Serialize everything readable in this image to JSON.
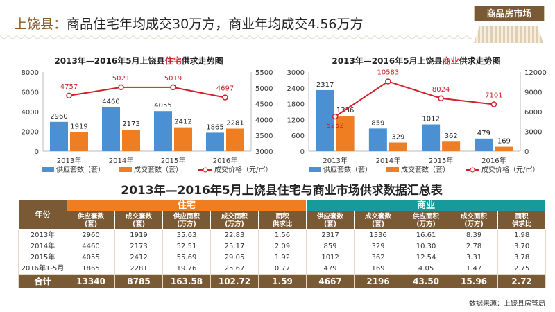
{
  "headline": {
    "prefix": "上饶县：",
    "text": "商品住宅年均成交30万方，商业年均成交4.56万方"
  },
  "badge": "商品房市场",
  "colors": {
    "supply": "#4a90d2",
    "deal": "#ef7d22",
    "price": "#d0202a",
    "brown": "#7a5a34",
    "teal": "#179a9a"
  },
  "chart_data": [
    {
      "type": "bar+line",
      "title_pre": "2013年—2016年5月上饶县",
      "title_hl": "住宅",
      "title_post": "供求走势图",
      "categories": [
        "2013年",
        "2014年",
        "2015年",
        "2016年"
      ],
      "y_left": {
        "min": 0,
        "max": 8000,
        "ticks": [
          "0",
          "2000",
          "4000",
          "6000",
          "8000"
        ]
      },
      "y_right": {
        "min": 3000,
        "max": 5500,
        "ticks": [
          "3000",
          "3500",
          "4000",
          "4500",
          "5000",
          "5500"
        ]
      },
      "series": [
        {
          "name": "供应套数（套）",
          "type": "bar",
          "axis": "left",
          "values": [
            2960,
            4460,
            4055,
            1865
          ]
        },
        {
          "name": "成交套数（套）",
          "type": "bar",
          "axis": "left",
          "values": [
            1919,
            2173,
            2412,
            2281
          ]
        },
        {
          "name": "成交价格（元/㎡）",
          "type": "line",
          "axis": "right",
          "values": [
            4757,
            5021,
            5019,
            4697
          ]
        }
      ]
    },
    {
      "type": "bar+line",
      "title_pre": "2013年—2016年5月上饶县",
      "title_hl": "商业",
      "title_post": "供求走势图",
      "categories": [
        "2013年",
        "2014年",
        "2015年",
        "2016年"
      ],
      "y_left": {
        "min": 0,
        "max": 3000,
        "ticks": [
          "0",
          "600",
          "1200",
          "1800",
          "2400",
          "3000"
        ]
      },
      "y_right": {
        "min": 0,
        "max": 12000,
        "ticks": [
          "0",
          "3000",
          "6000",
          "9000",
          "12000"
        ]
      },
      "series": [
        {
          "name": "供应套数（套）",
          "type": "bar",
          "axis": "left",
          "values": [
            2317,
            859,
            1012,
            479
          ]
        },
        {
          "name": "成交套数（套）",
          "type": "bar",
          "axis": "left",
          "values": [
            1336,
            329,
            362,
            169
          ]
        },
        {
          "name": "成交价格（元/㎡）",
          "type": "line",
          "axis": "right",
          "values": [
            5252,
            10583,
            8024,
            7101
          ]
        }
      ]
    }
  ],
  "table": {
    "title": "2013年—2016年5月上饶县住宅与商业市场供求数据汇总表",
    "year_header": "年份",
    "group1": "住宅",
    "group2": "商业",
    "cols": [
      [
        "供应套数",
        "(套)"
      ],
      [
        "成交套数",
        "(套)"
      ],
      [
        "供应面积",
        "(万方)"
      ],
      [
        "成交面积",
        "(万方)"
      ],
      [
        "面积",
        "供求比"
      ],
      [
        "供应套数",
        "(套)"
      ],
      [
        "成交套数",
        "(套)"
      ],
      [
        "供应面积",
        "(万方)"
      ],
      [
        "成交面积",
        "(万方)"
      ],
      [
        "面积",
        "供求比"
      ]
    ],
    "rows": [
      [
        "2013年",
        "2960",
        "1919",
        "35.63",
        "22.83",
        "1.56",
        "2317",
        "1336",
        "16.61",
        "8.39",
        "1.98"
      ],
      [
        "2014年",
        "4460",
        "2173",
        "52.51",
        "25.17",
        "2.09",
        "859",
        "329",
        "10.30",
        "2.78",
        "3.70"
      ],
      [
        "2015年",
        "4055",
        "2412",
        "55.69",
        "29.05",
        "1.92",
        "1012",
        "362",
        "12.54",
        "3.31",
        "3.78"
      ],
      [
        "2016年1-5月",
        "1865",
        "2281",
        "19.76",
        "25.67",
        "0.77",
        "479",
        "169",
        "4.05",
        "1.47",
        "2.75"
      ]
    ],
    "total": [
      "合计",
      "13340",
      "8785",
      "163.58",
      "102.72",
      "1.59",
      "4667",
      "2196",
      "43.50",
      "15.96",
      "2.72"
    ]
  },
  "source": "数据来源：上饶县房管局"
}
